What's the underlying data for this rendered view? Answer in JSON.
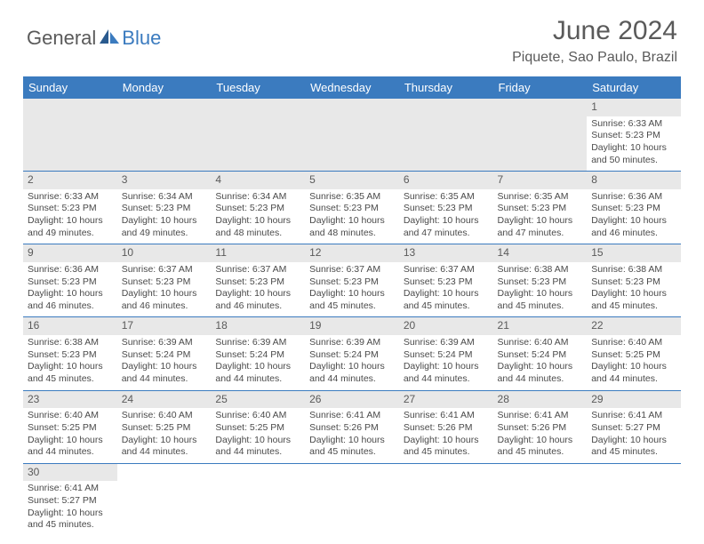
{
  "logo": {
    "text1": "General",
    "text2": "Blue"
  },
  "title": "June 2024",
  "location": "Piquete, Sao Paulo, Brazil",
  "columns": [
    "Sunday",
    "Monday",
    "Tuesday",
    "Wednesday",
    "Thursday",
    "Friday",
    "Saturday"
  ],
  "colors": {
    "header_bg": "#3b7bbf",
    "header_fg": "#ffffff",
    "daynum_bg": "#e8e8e8",
    "border": "#3b7bbf",
    "text": "#4a4a4a",
    "title": "#5a5a5a"
  },
  "weeks": [
    [
      null,
      null,
      null,
      null,
      null,
      null,
      {
        "n": "1",
        "sr": "6:33 AM",
        "ss": "5:23 PM",
        "dl": "10 hours and 50 minutes."
      }
    ],
    [
      {
        "n": "2",
        "sr": "6:33 AM",
        "ss": "5:23 PM",
        "dl": "10 hours and 49 minutes."
      },
      {
        "n": "3",
        "sr": "6:34 AM",
        "ss": "5:23 PM",
        "dl": "10 hours and 49 minutes."
      },
      {
        "n": "4",
        "sr": "6:34 AM",
        "ss": "5:23 PM",
        "dl": "10 hours and 48 minutes."
      },
      {
        "n": "5",
        "sr": "6:35 AM",
        "ss": "5:23 PM",
        "dl": "10 hours and 48 minutes."
      },
      {
        "n": "6",
        "sr": "6:35 AM",
        "ss": "5:23 PM",
        "dl": "10 hours and 47 minutes."
      },
      {
        "n": "7",
        "sr": "6:35 AM",
        "ss": "5:23 PM",
        "dl": "10 hours and 47 minutes."
      },
      {
        "n": "8",
        "sr": "6:36 AM",
        "ss": "5:23 PM",
        "dl": "10 hours and 46 minutes."
      }
    ],
    [
      {
        "n": "9",
        "sr": "6:36 AM",
        "ss": "5:23 PM",
        "dl": "10 hours and 46 minutes."
      },
      {
        "n": "10",
        "sr": "6:37 AM",
        "ss": "5:23 PM",
        "dl": "10 hours and 46 minutes."
      },
      {
        "n": "11",
        "sr": "6:37 AM",
        "ss": "5:23 PM",
        "dl": "10 hours and 46 minutes."
      },
      {
        "n": "12",
        "sr": "6:37 AM",
        "ss": "5:23 PM",
        "dl": "10 hours and 45 minutes."
      },
      {
        "n": "13",
        "sr": "6:37 AM",
        "ss": "5:23 PM",
        "dl": "10 hours and 45 minutes."
      },
      {
        "n": "14",
        "sr": "6:38 AM",
        "ss": "5:23 PM",
        "dl": "10 hours and 45 minutes."
      },
      {
        "n": "15",
        "sr": "6:38 AM",
        "ss": "5:23 PM",
        "dl": "10 hours and 45 minutes."
      }
    ],
    [
      {
        "n": "16",
        "sr": "6:38 AM",
        "ss": "5:23 PM",
        "dl": "10 hours and 45 minutes."
      },
      {
        "n": "17",
        "sr": "6:39 AM",
        "ss": "5:24 PM",
        "dl": "10 hours and 44 minutes."
      },
      {
        "n": "18",
        "sr": "6:39 AM",
        "ss": "5:24 PM",
        "dl": "10 hours and 44 minutes."
      },
      {
        "n": "19",
        "sr": "6:39 AM",
        "ss": "5:24 PM",
        "dl": "10 hours and 44 minutes."
      },
      {
        "n": "20",
        "sr": "6:39 AM",
        "ss": "5:24 PM",
        "dl": "10 hours and 44 minutes."
      },
      {
        "n": "21",
        "sr": "6:40 AM",
        "ss": "5:24 PM",
        "dl": "10 hours and 44 minutes."
      },
      {
        "n": "22",
        "sr": "6:40 AM",
        "ss": "5:25 PM",
        "dl": "10 hours and 44 minutes."
      }
    ],
    [
      {
        "n": "23",
        "sr": "6:40 AM",
        "ss": "5:25 PM",
        "dl": "10 hours and 44 minutes."
      },
      {
        "n": "24",
        "sr": "6:40 AM",
        "ss": "5:25 PM",
        "dl": "10 hours and 44 minutes."
      },
      {
        "n": "25",
        "sr": "6:40 AM",
        "ss": "5:25 PM",
        "dl": "10 hours and 44 minutes."
      },
      {
        "n": "26",
        "sr": "6:41 AM",
        "ss": "5:26 PM",
        "dl": "10 hours and 45 minutes."
      },
      {
        "n": "27",
        "sr": "6:41 AM",
        "ss": "5:26 PM",
        "dl": "10 hours and 45 minutes."
      },
      {
        "n": "28",
        "sr": "6:41 AM",
        "ss": "5:26 PM",
        "dl": "10 hours and 45 minutes."
      },
      {
        "n": "29",
        "sr": "6:41 AM",
        "ss": "5:27 PM",
        "dl": "10 hours and 45 minutes."
      }
    ],
    [
      {
        "n": "30",
        "sr": "6:41 AM",
        "ss": "5:27 PM",
        "dl": "10 hours and 45 minutes."
      },
      null,
      null,
      null,
      null,
      null,
      null
    ]
  ],
  "labels": {
    "sunrise": "Sunrise:",
    "sunset": "Sunset:",
    "daylight": "Daylight:"
  }
}
